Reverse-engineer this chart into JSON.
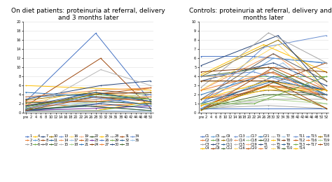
{
  "left_title": "On diet patients: proteinuria at referral, delivery\nand 3 months later",
  "right_title": "Controls: proteinuria at referral, delivery and 3\nmonths later",
  "left_ylim": [
    0,
    20
  ],
  "right_ylim": [
    0,
    10
  ],
  "left_yticks": [
    0,
    2,
    4,
    6,
    8,
    10,
    12,
    14,
    16,
    18,
    20
  ],
  "right_yticks": [
    0,
    1,
    2,
    3,
    4,
    5,
    6,
    7,
    8,
    9,
    10
  ],
  "left_xtick_labels": [
    "pre",
    "2",
    "4",
    "6",
    "8",
    "10",
    "12",
    "14",
    "16",
    "18",
    "20",
    "22",
    "24",
    "26",
    "28",
    "30",
    "32",
    "34",
    "36",
    "38",
    "40",
    "42",
    "44",
    "46",
    "48",
    "50"
  ],
  "right_xtick_labels": [
    "pre",
    "2",
    "4",
    "6",
    "8",
    "10",
    "12",
    "14",
    "16",
    "18",
    "20",
    "22",
    "24",
    "26",
    "28",
    "30",
    "32",
    "34",
    "36",
    "38",
    "40",
    "42",
    "44",
    "46",
    "48",
    "50",
    "52"
  ],
  "left_series": [
    {
      "label": "1",
      "values": [
        2.5,
        17.5,
        2.5
      ],
      "x": [
        0,
        28,
        50
      ],
      "color": "#4472C4"
    },
    {
      "label": "2",
      "values": [
        1.8,
        1.5,
        2.2
      ],
      "x": [
        0,
        28,
        50
      ],
      "color": "#ED7D31"
    },
    {
      "label": "3",
      "values": [
        0.3,
        0.3,
        0.3
      ],
      "x": [
        0,
        28,
        50
      ],
      "color": "#A5A5A5"
    },
    {
      "label": "4",
      "values": [
        6.0,
        5.5,
        5.0
      ],
      "x": [
        0,
        22,
        50
      ],
      "color": "#FFC000"
    },
    {
      "label": "5",
      "values": [
        1.5,
        3.0,
        3.5
      ],
      "x": [
        0,
        28,
        50
      ],
      "color": "#5B9BD5"
    },
    {
      "label": "6",
      "values": [
        0.4,
        0.5,
        2.0
      ],
      "x": [
        0,
        28,
        50
      ],
      "color": "#70AD47"
    },
    {
      "label": "7",
      "values": [
        3.0,
        6.0,
        7.0
      ],
      "x": [
        0,
        30,
        50
      ],
      "color": "#264478"
    },
    {
      "label": "8",
      "values": [
        1.5,
        12.0,
        1.0
      ],
      "x": [
        0,
        30,
        50
      ],
      "color": "#9E480E"
    },
    {
      "label": "9",
      "values": [
        0.3,
        5.0,
        4.0
      ],
      "x": [
        0,
        28,
        50
      ],
      "color": "#636363"
    },
    {
      "label": "10",
      "values": [
        2.8,
        4.5,
        3.0
      ],
      "x": [
        0,
        28,
        50
      ],
      "color": "#997300"
    },
    {
      "label": "11",
      "values": [
        3.5,
        4.2,
        2.5
      ],
      "x": [
        0,
        30,
        50
      ],
      "color": "#255E91"
    },
    {
      "label": "12",
      "values": [
        1.5,
        3.5,
        3.0
      ],
      "x": [
        0,
        28,
        50
      ],
      "color": "#43682B"
    },
    {
      "label": "13",
      "values": [
        0.5,
        2.0,
        4.0
      ],
      "x": [
        0,
        28,
        50
      ],
      "color": "#698ED0"
    },
    {
      "label": "14",
      "values": [
        3.5,
        5.0,
        5.5
      ],
      "x": [
        0,
        30,
        50
      ],
      "color": "#F1975A"
    },
    {
      "label": "15",
      "values": [
        0.2,
        9.5,
        6.0
      ],
      "x": [
        0,
        30,
        50
      ],
      "color": "#B7B7B7"
    },
    {
      "label": "16",
      "values": [
        2.0,
        4.5,
        3.5
      ],
      "x": [
        0,
        22,
        50
      ],
      "color": "#FFDA6D"
    },
    {
      "label": "17",
      "values": [
        1.0,
        2.5,
        2.0
      ],
      "x": [
        0,
        28,
        50
      ],
      "color": "#9DC3E6"
    },
    {
      "label": "18",
      "values": [
        0.4,
        2.5,
        4.5
      ],
      "x": [
        0,
        30,
        50
      ],
      "color": "#A9D18E"
    },
    {
      "label": "19",
      "values": [
        1.8,
        3.0,
        5.5
      ],
      "x": [
        0,
        30,
        50
      ],
      "color": "#F4B183"
    },
    {
      "label": "20",
      "values": [
        0.8,
        4.0,
        5.5
      ],
      "x": [
        0,
        26,
        50
      ],
      "color": "#C55A11"
    },
    {
      "label": "21",
      "values": [
        4.5,
        3.5,
        1.5
      ],
      "x": [
        0,
        30,
        50
      ],
      "color": "#2E75B6"
    },
    {
      "label": "22",
      "values": [
        2.2,
        2.5,
        2.0
      ],
      "x": [
        0,
        28,
        50
      ],
      "color": "#375623"
    },
    {
      "label": "23",
      "values": [
        0.5,
        1.0,
        1.5
      ],
      "x": [
        0,
        28,
        50
      ],
      "color": "#7030A0"
    },
    {
      "label": "24",
      "values": [
        1.5,
        4.2,
        4.5
      ],
      "x": [
        0,
        30,
        50
      ],
      "color": "#833C00"
    },
    {
      "label": "25",
      "values": [
        0.3,
        0.5,
        2.5
      ],
      "x": [
        0,
        28,
        50
      ],
      "color": "#FFC000"
    },
    {
      "label": "26",
      "values": [
        0.6,
        1.5,
        0.5
      ],
      "x": [
        0,
        26,
        50
      ],
      "color": "#4472C4"
    },
    {
      "label": "27",
      "values": [
        2.5,
        2.5,
        3.5
      ],
      "x": [
        0,
        28,
        50
      ],
      "color": "#ED7D31"
    },
    {
      "label": "28",
      "values": [
        0.3,
        0.4,
        0.3
      ],
      "x": [
        0,
        30,
        50
      ],
      "color": "#A5A5A5"
    },
    {
      "label": "29",
      "values": [
        1.2,
        4.0,
        3.0
      ],
      "x": [
        0,
        28,
        50
      ],
      "color": "#70AD47"
    },
    {
      "label": "30",
      "values": [
        0.4,
        2.0,
        1.0
      ],
      "x": [
        0,
        30,
        50
      ],
      "color": "#264478"
    },
    {
      "label": "31",
      "values": [
        0.5,
        3.5,
        2.5
      ],
      "x": [
        0,
        28,
        50
      ],
      "color": "#9E480E"
    },
    {
      "label": "32",
      "values": [
        1.5,
        4.5,
        2.5
      ],
      "x": [
        0,
        28,
        50
      ],
      "color": "#255E91"
    },
    {
      "label": "33",
      "values": [
        0.8,
        1.5,
        0.5
      ],
      "x": [
        0,
        24,
        50
      ],
      "color": "#43682B"
    },
    {
      "label": "34",
      "values": [
        1.0,
        3.5,
        1.5
      ],
      "x": [
        0,
        26,
        50
      ],
      "color": "#698ED0"
    },
    {
      "label": "36",
      "values": [
        0.3,
        0.5,
        0.3
      ],
      "x": [
        0,
        28,
        50
      ],
      "color": "#9DC3E6"
    }
  ],
  "right_series": [
    {
      "label": "C1",
      "values": [
        6.2,
        6.2,
        5.5
      ],
      "x": [
        0,
        22,
        50
      ],
      "color": "#4472C4"
    },
    {
      "label": "C2",
      "values": [
        1.5,
        4.5,
        2.5
      ],
      "x": [
        0,
        28,
        50
      ],
      "color": "#ED7D31"
    },
    {
      "label": "C3",
      "values": [
        0.5,
        0.8,
        0.5
      ],
      "x": [
        0,
        28,
        50
      ],
      "color": "#A5A5A5"
    },
    {
      "label": "C4",
      "values": [
        4.2,
        7.5,
        4.5
      ],
      "x": [
        0,
        26,
        52
      ],
      "color": "#FFC000"
    },
    {
      "label": "C5",
      "values": [
        1.0,
        6.0,
        5.5
      ],
      "x": [
        0,
        30,
        52
      ],
      "color": "#5B9BD5"
    },
    {
      "label": "C6",
      "values": [
        4.0,
        4.0,
        4.0
      ],
      "x": [
        0,
        28,
        52
      ],
      "color": "#70AD47"
    },
    {
      "label": "C7",
      "values": [
        3.5,
        5.5,
        3.0
      ],
      "x": [
        0,
        30,
        52
      ],
      "color": "#264478"
    },
    {
      "label": "C8",
      "values": [
        0.4,
        3.5,
        5.5
      ],
      "x": [
        0,
        32,
        52
      ],
      "color": "#9E480E"
    },
    {
      "label": "C9",
      "values": [
        1.5,
        2.5,
        2.0
      ],
      "x": [
        0,
        28,
        52
      ],
      "color": "#636363"
    },
    {
      "label": "C10",
      "values": [
        4.0,
        8.0,
        3.5
      ],
      "x": [
        0,
        32,
        52
      ],
      "color": "#997300"
    },
    {
      "label": "C11",
      "values": [
        0.5,
        4.0,
        2.5
      ],
      "x": [
        0,
        30,
        52
      ],
      "color": "#255E91"
    },
    {
      "label": "C12",
      "values": [
        4.0,
        5.0,
        2.0
      ],
      "x": [
        0,
        28,
        52
      ],
      "color": "#43682B"
    },
    {
      "label": "C13",
      "values": [
        1.0,
        7.2,
        8.5
      ],
      "x": [
        0,
        26,
        52
      ],
      "color": "#698ED0"
    },
    {
      "label": "C14",
      "values": [
        2.5,
        6.5,
        2.5
      ],
      "x": [
        0,
        30,
        52
      ],
      "color": "#F1975A"
    },
    {
      "label": "C15",
      "values": [
        0.3,
        1.5,
        1.5
      ],
      "x": [
        0,
        30,
        52
      ],
      "color": "#B7B7B7"
    },
    {
      "label": "C16",
      "values": [
        2.5,
        2.8,
        2.5
      ],
      "x": [
        0,
        28,
        52
      ],
      "color": "#FFDA6D"
    },
    {
      "label": "C17",
      "values": [
        1.0,
        3.5,
        1.5
      ],
      "x": [
        0,
        28,
        52
      ],
      "color": "#9DC3E6"
    },
    {
      "label": "C18",
      "values": [
        0.3,
        2.0,
        1.0
      ],
      "x": [
        0,
        30,
        52
      ],
      "color": "#A9D18E"
    },
    {
      "label": "C19",
      "values": [
        4.0,
        4.0,
        2.0
      ],
      "x": [
        0,
        22,
        52
      ],
      "color": "#F4B183"
    },
    {
      "label": "C20",
      "values": [
        0.8,
        3.0,
        2.0
      ],
      "x": [
        0,
        28,
        52
      ],
      "color": "#C55A11"
    },
    {
      "label": "C21",
      "values": [
        2.0,
        4.5,
        2.0
      ],
      "x": [
        0,
        30,
        52
      ],
      "color": "#2E75B6"
    },
    {
      "label": "C22",
      "values": [
        0.5,
        2.0,
        2.0
      ],
      "x": [
        0,
        26,
        52
      ],
      "color": "#375623"
    },
    {
      "label": "T1",
      "values": [
        5.2,
        8.5,
        2.5
      ],
      "x": [
        0,
        32,
        52
      ],
      "color": "#264478"
    },
    {
      "label": "T2",
      "values": [
        1.5,
        3.0,
        2.5
      ],
      "x": [
        0,
        28,
        52
      ],
      "color": "#ED7D31"
    },
    {
      "label": "T3",
      "values": [
        0.5,
        1.5,
        1.5
      ],
      "x": [
        0,
        26,
        52
      ],
      "color": "#B7B7B7"
    },
    {
      "label": "T4",
      "values": [
        1.5,
        3.5,
        2.5
      ],
      "x": [
        0,
        28,
        52
      ],
      "color": "#FFC000"
    },
    {
      "label": "T5",
      "values": [
        2.8,
        8.8,
        5.5
      ],
      "x": [
        0,
        28,
        52
      ],
      "color": "#A5A5A5"
    },
    {
      "label": "T6",
      "values": [
        2.5,
        7.5,
        2.5
      ],
      "x": [
        0,
        32,
        52
      ],
      "color": "#FFD966"
    },
    {
      "label": "T7",
      "values": [
        0.5,
        5.5,
        1.5
      ],
      "x": [
        0,
        34,
        52
      ],
      "color": "#9DC3E6"
    },
    {
      "label": "T8",
      "values": [
        4.5,
        5.0,
        4.5
      ],
      "x": [
        0,
        28,
        52
      ],
      "color": "#843C0C"
    },
    {
      "label": "T9",
      "values": [
        1.0,
        3.5,
        2.5
      ],
      "x": [
        0,
        30,
        52
      ],
      "color": "#255E91"
    },
    {
      "label": "T10",
      "values": [
        3.5,
        3.5,
        1.5
      ],
      "x": [
        0,
        28,
        52
      ],
      "color": "#43682B"
    },
    {
      "label": "T11",
      "values": [
        4.0,
        4.5,
        2.0
      ],
      "x": [
        0,
        22,
        52
      ],
      "color": "#698ED0"
    },
    {
      "label": "T12",
      "values": [
        0.3,
        5.0,
        2.5
      ],
      "x": [
        0,
        30,
        52
      ],
      "color": "#C55A11"
    },
    {
      "label": "T13",
      "values": [
        1.0,
        1.0,
        4.0
      ],
      "x": [
        0,
        22,
        52
      ],
      "color": "#70AD47"
    },
    {
      "label": "T14",
      "values": [
        0.8,
        2.5,
        2.5
      ],
      "x": [
        0,
        26,
        52
      ],
      "color": "#FFC000"
    },
    {
      "label": "T15",
      "values": [
        0.5,
        0.5,
        0.5
      ],
      "x": [
        0,
        28,
        52
      ],
      "color": "#4472C4"
    },
    {
      "label": "T16",
      "values": [
        2.5,
        4.5,
        1.5
      ],
      "x": [
        0,
        30,
        52
      ],
      "color": "#ED7D31"
    },
    {
      "label": "T17",
      "values": [
        1.5,
        6.5,
        3.5
      ],
      "x": [
        0,
        30,
        52
      ],
      "color": "#636363"
    },
    {
      "label": "T18",
      "values": [
        0.3,
        3.0,
        0.5
      ],
      "x": [
        0,
        28,
        52
      ],
      "color": "#997300"
    },
    {
      "label": "T19",
      "values": [
        1.0,
        1.5,
        1.0
      ],
      "x": [
        0,
        28,
        52
      ],
      "color": "#A9D18E"
    },
    {
      "label": "T20",
      "values": [
        3.5,
        3.5,
        0.5
      ],
      "x": [
        0,
        30,
        52
      ],
      "color": "#9E480E"
    }
  ],
  "background_color": "#FFFFFF",
  "title_fontsize": 6.5,
  "legend_fontsize": 3.5,
  "tick_fontsize": 3.5
}
